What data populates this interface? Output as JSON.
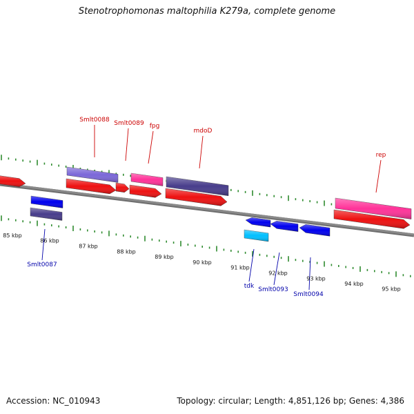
{
  "title": "Stenotrophomonas maltophilia K279a, complete genome",
  "footer": {
    "accession": "Accession: NC_010943",
    "topology": "Topology: circular; Length: 4,851,126 bp; Genes: 4,386"
  },
  "colors": {
    "axis": "#8a8a8a",
    "tick": "#2e8b2e",
    "label_top": "#cc0000",
    "label_bottom": "#0000aa"
  },
  "ruler": {
    "ticks": [
      {
        "label": "85 kbp"
      },
      {
        "label": "86 kbp"
      },
      {
        "label": "87 kbp"
      },
      {
        "label": "88 kbp"
      },
      {
        "label": "89 kbp"
      },
      {
        "label": "90 kbp"
      },
      {
        "label": "91 kbp"
      },
      {
        "label": "92 kbp"
      },
      {
        "label": "93 kbp"
      },
      {
        "label": "94 kbp"
      },
      {
        "label": "95 kbp"
      }
    ]
  },
  "labels": {
    "top": [
      "Smlt0088",
      "Smlt0089",
      "fpg",
      "mdoD",
      "rep"
    ],
    "bottom": [
      "Smlt0087",
      "tdk",
      "Smlt0093",
      "Smlt0094"
    ]
  },
  "features": {
    "blocks": [
      {
        "name": "Smlt0088-protein",
        "color": "#7b68d8"
      },
      {
        "name": "fpg-protein",
        "color": "#ff3399"
      },
      {
        "name": "mdoD-protein",
        "color": "#483d8b"
      },
      {
        "name": "rep-protein",
        "color": "#ff3399"
      },
      {
        "name": "Smlt0087-cds",
        "color": "#0000ee"
      },
      {
        "name": "Smlt0087-protein",
        "color": "#483d8b"
      },
      {
        "name": "tdk-protein",
        "color": "#00bfff"
      }
    ],
    "arrows": [
      {
        "name": "prev-gene",
        "color": "#ee1111"
      },
      {
        "name": "Smlt0088-cds",
        "color": "#ee1111"
      },
      {
        "name": "Smlt0089-cds",
        "color": "#ee1111"
      },
      {
        "name": "fpg-cds",
        "color": "#ee1111"
      },
      {
        "name": "mdoD-cds",
        "color": "#ee1111"
      },
      {
        "name": "rep-cds",
        "color": "#ee1111"
      },
      {
        "name": "tdk-cds",
        "color": "#0000ee"
      },
      {
        "name": "Smlt0093-cds",
        "color": "#0000ee"
      },
      {
        "name": "Smlt0094-cds",
        "color": "#0000ee"
      }
    ]
  }
}
